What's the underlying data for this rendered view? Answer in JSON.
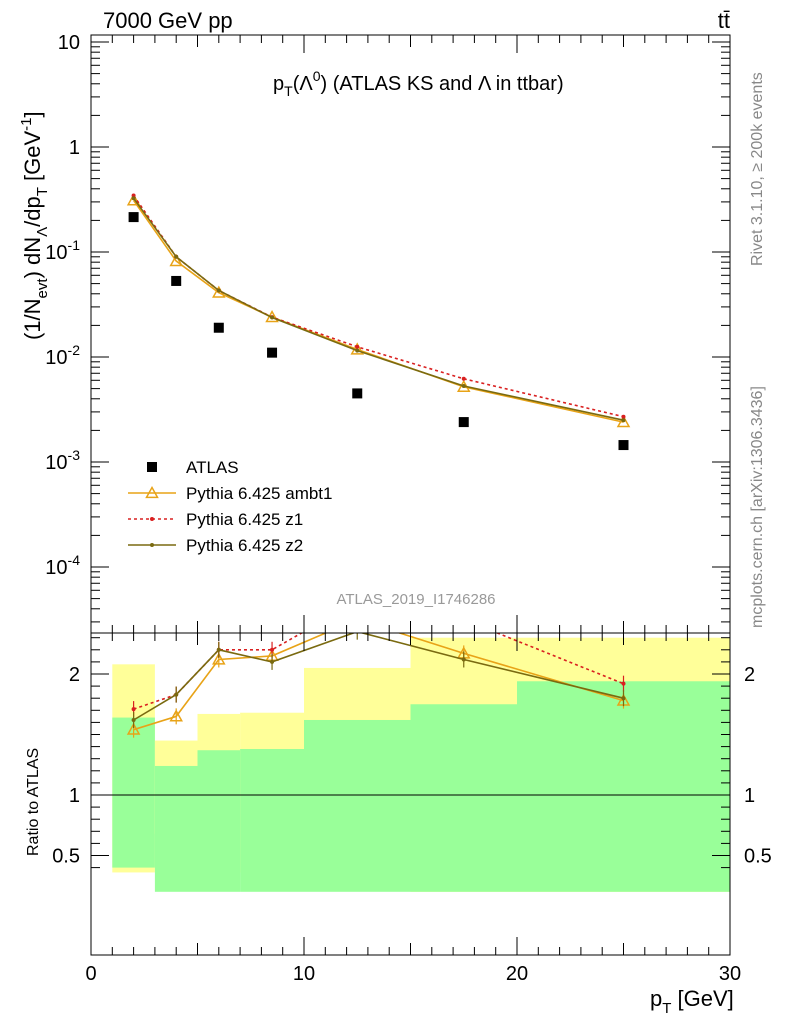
{
  "header": {
    "energy_label": "7000 GeV pp",
    "process_label": "tt̄"
  },
  "side_text": {
    "rivet": "Rivet 3.1.10, ≥ 200k events",
    "mcplots": "mcplots.cern.ch [arXiv:1306.3436]"
  },
  "chart_data": {
    "type": "line",
    "title": "p_T(Λ^0) (ATLAS KS and Λ in ttbar)",
    "analysis_label": "ATLAS_2019_I1746286",
    "x": [
      2,
      4,
      6,
      8.5,
      12.5,
      17.5,
      25
    ],
    "x_edges": [
      1,
      3,
      5,
      7,
      10,
      15,
      20,
      30
    ],
    "xlabel": "p_T [GeV]",
    "xlim": [
      0,
      30
    ],
    "main_panel": {
      "ylabel": "(1/N_evt) dN_Λ/dp_T [GeV^-1]",
      "yscale": "log",
      "ylim": [
        3e-05,
        12
      ],
      "y_tick_labels": [
        "10",
        "1",
        "10^-1",
        "10^-2",
        "10^-3",
        "10^-4"
      ],
      "legend_placement": "lower-left"
    },
    "ratio_panel": {
      "ylabel": "Ratio to ATLAS",
      "ylim": [
        0.35,
        2.3
      ],
      "y_tick_labels": [
        "0.5",
        "1",
        "2"
      ],
      "band_inner_lo": [
        0.4,
        0.2,
        0.2,
        0.2,
        0.2,
        0.2,
        0.2
      ],
      "band_inner_hi": [
        1.64,
        1.24,
        1.37,
        1.38,
        1.62,
        1.75,
        1.94
      ],
      "band_outer_lo": [
        0.36,
        0.68,
        0.36,
        0.36,
        0.44,
        0.2,
        0.2
      ],
      "band_outer_hi": [
        2.08,
        1.45,
        1.67,
        1.68,
        2.05,
        2.3,
        2.3
      ]
    },
    "series": [
      {
        "name": "ATLAS",
        "values": [
          0.215,
          0.053,
          0.019,
          0.011,
          0.0045,
          0.0024,
          0.00145
        ],
        "ratio": [
          1,
          1,
          1,
          1,
          1,
          1,
          1
        ]
      },
      {
        "name": "Pythia 6.425 ambt1",
        "values": [
          0.31,
          0.082,
          0.041,
          0.024,
          0.0118,
          0.0052,
          0.0024
        ],
        "ratio": [
          1.54,
          1.65,
          2.12,
          2.15,
          2.45,
          2.17,
          1.78
        ]
      },
      {
        "name": "Pythia 6.425 z1",
        "values": [
          0.345,
          0.09,
          0.043,
          0.024,
          0.0125,
          0.0062,
          0.0027
        ],
        "ratio": [
          1.71,
          1.83,
          2.2,
          2.2,
          2.6,
          2.45,
          1.92
        ]
      },
      {
        "name": "Pythia 6.425 z2",
        "values": [
          0.325,
          0.09,
          0.043,
          0.0238,
          0.0115,
          0.0053,
          0.0025
        ],
        "ratio": [
          1.62,
          1.83,
          2.2,
          2.1,
          2.35,
          2.12,
          1.8
        ]
      }
    ],
    "colors": {
      "data": "#000000",
      "ambt1": "#e8a317",
      "z1": "#d92020",
      "z2": "#7a6a10",
      "band_outer": "#ffff99",
      "band_inner": "#99ff99",
      "analysis_label": "#999999"
    }
  }
}
